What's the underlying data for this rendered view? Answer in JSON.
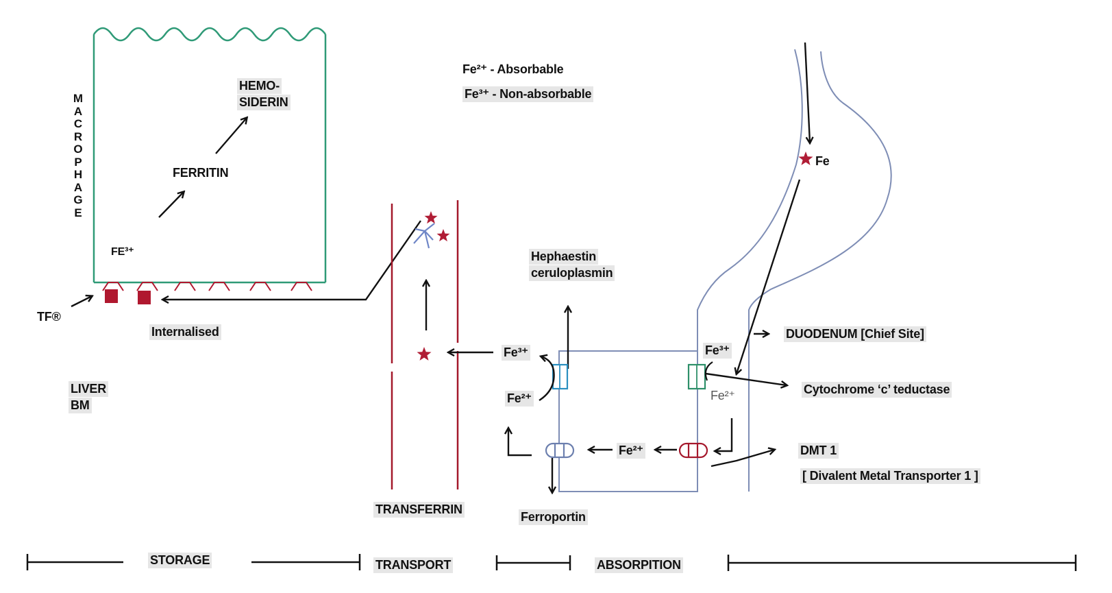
{
  "legend": {
    "fe2": "Fe²⁺ - Absorbable",
    "fe3": "Fe³⁺ - Non-absorbable"
  },
  "macrophage": {
    "side_label": "MACROPHAGE",
    "hemosiderin_line1": "HEMO-",
    "hemosiderin_line2": "SIDERIN",
    "ferritin": "FERRITIN",
    "fe3": "FE³⁺"
  },
  "receptor": {
    "tfr": "TF®",
    "internalised": "Internalised"
  },
  "storage_sites": {
    "line1": "LIVER",
    "line2": "BM"
  },
  "transport": {
    "transferrin": "TRANSFERRIN"
  },
  "enterocyte": {
    "hephaestin_line1": "Hephaestin",
    "hephaestin_line2": "ceruloplasmin",
    "fe3_basolateral": "Fe³⁺",
    "fe2_basolateral": "Fe²⁺",
    "fe2_cytosol": "Fe²⁺",
    "ferroportin": "Ferroportin",
    "fe3_apical": "Fe³⁺",
    "fe2_apical": "Fe²⁺"
  },
  "gut": {
    "fe": "Fe",
    "duodenum": "DUODENUM [Chief Site]",
    "cytochrome": "Cytochrome ‘c’ teductase",
    "dmt1": "DMT 1",
    "dmt1_full": "[ Divalent Metal Transporter 1 ]"
  },
  "stages": {
    "storage": "STORAGE",
    "transport": "TRANSPORT",
    "absorption": "ABSORPITION"
  },
  "colors": {
    "macrophage_border": "#2f9a77",
    "vessel": "#a3182a",
    "star": "#b01d35",
    "receptor": "#b0182f",
    "cell_border": "#7e8db5",
    "hephaestin_channel": "#2a8fc0",
    "cyt_channel": "#2d8f69",
    "ferroportin_channel": "#6c7fae",
    "dmt_channel": "#a5182c",
    "transferrin_blue": "#6f86c7"
  }
}
